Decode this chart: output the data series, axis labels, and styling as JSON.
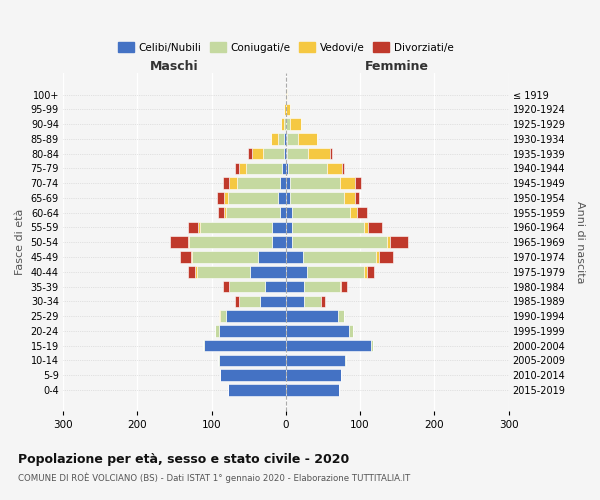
{
  "age_groups": [
    "0-4",
    "5-9",
    "10-14",
    "15-19",
    "20-24",
    "25-29",
    "30-34",
    "35-39",
    "40-44",
    "45-49",
    "50-54",
    "55-59",
    "60-64",
    "65-69",
    "70-74",
    "75-79",
    "80-84",
    "85-89",
    "90-94",
    "95-99",
    "100+"
  ],
  "birth_years": [
    "2015-2019",
    "2010-2014",
    "2005-2009",
    "2000-2004",
    "1995-1999",
    "1990-1994",
    "1985-1989",
    "1980-1984",
    "1975-1979",
    "1970-1974",
    "1965-1969",
    "1960-1964",
    "1955-1959",
    "1950-1954",
    "1945-1949",
    "1940-1944",
    "1935-1939",
    "1930-1934",
    "1925-1929",
    "1920-1924",
    "≤ 1919"
  ],
  "colors": {
    "celibe": "#4472c4",
    "coniugato": "#c5d9a0",
    "vedovo": "#f5c842",
    "divorziato": "#c0392b"
  },
  "males": {
    "celibe": [
      78,
      88,
      90,
      110,
      90,
      80,
      35,
      28,
      48,
      38,
      18,
      18,
      8,
      10,
      8,
      5,
      3,
      2,
      0,
      0,
      0
    ],
    "coniugato": [
      0,
      0,
      1,
      2,
      5,
      8,
      28,
      48,
      72,
      88,
      112,
      98,
      73,
      68,
      58,
      48,
      28,
      8,
      2,
      0,
      0
    ],
    "vedovo": [
      0,
      0,
      0,
      0,
      0,
      2,
      0,
      0,
      2,
      2,
      2,
      2,
      2,
      5,
      10,
      10,
      15,
      10,
      5,
      2,
      0
    ],
    "divorziato": [
      0,
      0,
      0,
      0,
      0,
      0,
      5,
      8,
      10,
      14,
      24,
      14,
      8,
      10,
      8,
      5,
      5,
      0,
      0,
      0,
      0
    ]
  },
  "females": {
    "nubile": [
      72,
      75,
      80,
      115,
      85,
      70,
      25,
      25,
      28,
      23,
      8,
      8,
      8,
      5,
      5,
      3,
      2,
      2,
      0,
      0,
      0
    ],
    "coniugata": [
      0,
      0,
      1,
      3,
      5,
      8,
      23,
      48,
      78,
      98,
      128,
      98,
      78,
      73,
      68,
      53,
      28,
      15,
      5,
      0,
      0
    ],
    "vedova": [
      0,
      0,
      0,
      0,
      0,
      0,
      0,
      2,
      3,
      5,
      5,
      5,
      10,
      15,
      20,
      20,
      30,
      25,
      15,
      5,
      2
    ],
    "divorziata": [
      0,
      0,
      0,
      0,
      0,
      0,
      5,
      8,
      10,
      18,
      23,
      18,
      14,
      5,
      8,
      3,
      2,
      0,
      0,
      0,
      0
    ]
  },
  "title": "Popolazione per età, sesso e stato civile - 2020",
  "subtitle": "COMUNE DI ROÈ VOLCIANO (BS) - Dati ISTAT 1° gennaio 2020 - Elaborazione TUTTITALIA.IT",
  "xlabel_left": "Maschi",
  "xlabel_right": "Femmine",
  "ylabel_left": "Fasce di età",
  "ylabel_right": "Anni di nascita",
  "xlim": 300,
  "legend_labels": [
    "Celibi/Nubili",
    "Coniugati/e",
    "Vedovi/e",
    "Divorziati/e"
  ],
  "background_color": "#f5f5f5"
}
